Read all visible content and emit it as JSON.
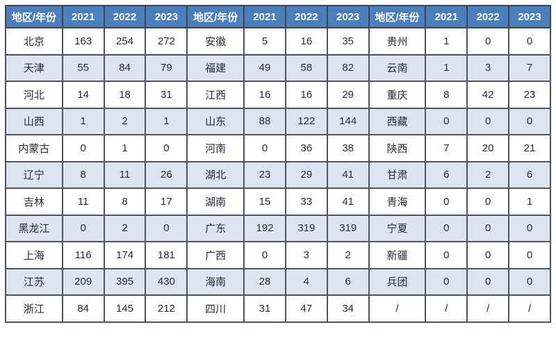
{
  "colors": {
    "header_bg": "#4A7EBD",
    "header_text": "#FFFFFF",
    "stripe_bg": "#DBE5F1",
    "grid_border": "#515161",
    "outer_border": "#43434F",
    "cell_text": "#2B2B33"
  },
  "chart_data": {
    "type": "table",
    "header_repeated": [
      "地区/年份",
      "2021",
      "2022",
      "2023"
    ],
    "group_count": 3,
    "groups": [
      {
        "rows": [
          [
            "北京",
            163,
            254,
            272
          ],
          [
            "天津",
            55,
            84,
            79
          ],
          [
            "河北",
            14,
            18,
            31
          ],
          [
            "山西",
            1,
            2,
            1
          ],
          [
            "内蒙古",
            0,
            1,
            0
          ],
          [
            "辽宁",
            8,
            11,
            26
          ],
          [
            "吉林",
            11,
            8,
            17
          ],
          [
            "黑龙江",
            0,
            2,
            0
          ],
          [
            "上海",
            116,
            174,
            181
          ],
          [
            "江苏",
            209,
            395,
            430
          ],
          [
            "浙江",
            84,
            145,
            212
          ]
        ]
      },
      {
        "rows": [
          [
            "安徽",
            5,
            16,
            35
          ],
          [
            "福建",
            49,
            58,
            82
          ],
          [
            "江西",
            16,
            16,
            29
          ],
          [
            "山东",
            88,
            122,
            144
          ],
          [
            "河南",
            0,
            36,
            38
          ],
          [
            "湖北",
            23,
            29,
            41
          ],
          [
            "湖南",
            15,
            33,
            41
          ],
          [
            "广东",
            192,
            319,
            319
          ],
          [
            "广西",
            0,
            3,
            2
          ],
          [
            "海南",
            28,
            4,
            6
          ],
          [
            "四川",
            31,
            47,
            34
          ]
        ]
      },
      {
        "rows": [
          [
            "贵州",
            1,
            0,
            0
          ],
          [
            "云南",
            1,
            3,
            7
          ],
          [
            "重庆",
            8,
            42,
            23
          ],
          [
            "西藏",
            0,
            0,
            0
          ],
          [
            "陕西",
            7,
            20,
            21
          ],
          [
            "甘肃",
            6,
            2,
            6
          ],
          [
            "青海",
            0,
            0,
            1
          ],
          [
            "宁夏",
            0,
            0,
            0
          ],
          [
            "新疆",
            0,
            0,
            0
          ],
          [
            "兵团",
            0,
            0,
            0
          ],
          [
            "/",
            "/",
            "/",
            "/"
          ]
        ]
      }
    ]
  }
}
